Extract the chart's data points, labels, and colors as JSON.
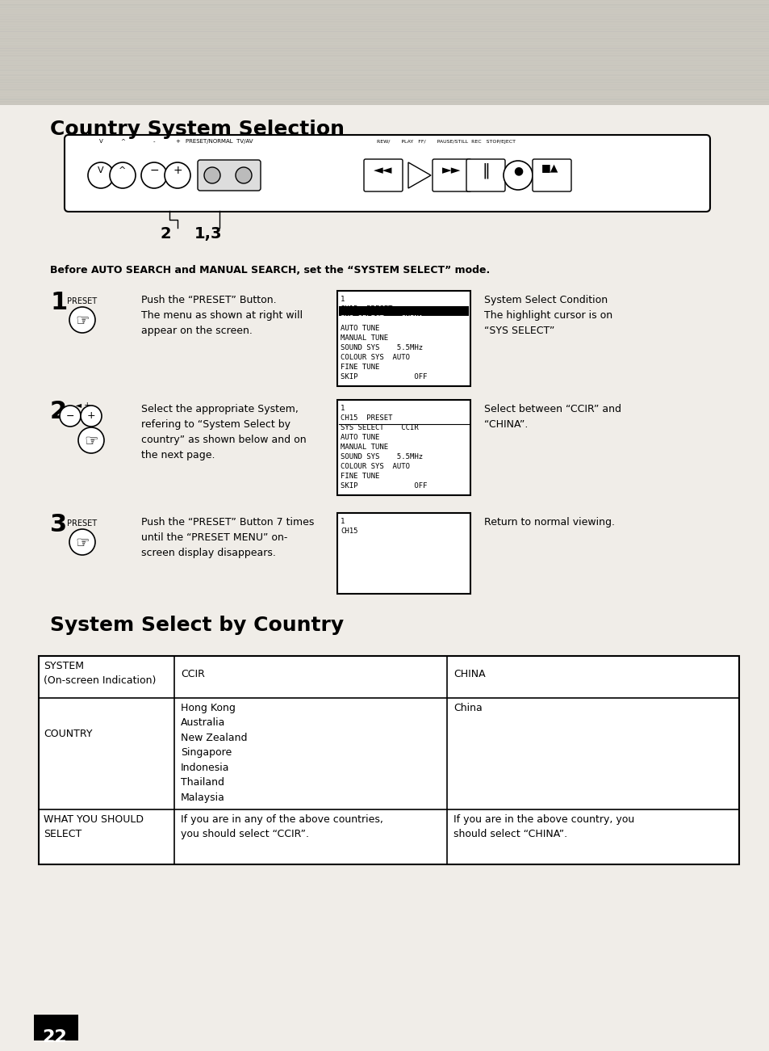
{
  "title": "Country System Selection",
  "subtitle2": "System Select by Country",
  "page_number": "22",
  "background_color": "#f0ede8",
  "before_text": "Before AUTO SEARCH and MANUAL SEARCH, set the “SYSTEM SELECT” mode.",
  "step1_num": "1",
  "step1_label": "PRESET",
  "step1_text": "Push the “PRESET” Button.\nThe menu as shown at right will\nappear on the screen.",
  "step1_note": "System Select Condition\nThe highlight cursor is on\n“SYS SELECT”",
  "step2_num": "2",
  "step2_text": "Select the appropriate System,\nrefering to “System Select by\ncountry” as shown below and on\nthe next page.",
  "step2_note": "Select between “CCIR” and\n“CHINA”.",
  "step3_num": "3",
  "step3_label": "PRESET",
  "step3_text": "Push the “PRESET” Button 7 times\nuntil the “PRESET MENU” on-\nscreen display disappears.",
  "step3_note": "Return to normal viewing.",
  "table_col0_header": "SYSTEM\n(On-screen Indication)",
  "table_col1_header": "CCIR",
  "table_col2_header": "CHINA",
  "table_row1_col0": "COUNTRY",
  "table_row1_col1": "Hong Kong\nAustralia\nNew Zealand\nSingapore\nIndonesia\nThailand\nMalaysia",
  "table_row1_col2": "China",
  "table_row2_col0": "WHAT YOU SHOULD\nSELECT",
  "table_row2_col1": "If you are in any of the above countries,\nyou should select “CCIR”.",
  "table_row2_col2": "If you are in the above country, you\nshould select “CHINA”."
}
